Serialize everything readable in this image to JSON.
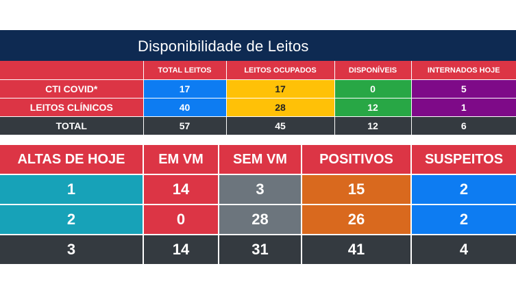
{
  "header": {
    "title": "Disponibilidade de Leitos"
  },
  "beds_table": {
    "columns": [
      "",
      "TOTAL LEITOS",
      "LEITOS OCUPADOS",
      "DISPONÍVEIS",
      "INTERNADOS HOJE"
    ],
    "rows": [
      {
        "label": "CTI COVID*",
        "values": [
          "17",
          "17",
          "0",
          "5"
        ]
      },
      {
        "label": "LEITOS CLÍNICOS",
        "values": [
          "40",
          "28",
          "12",
          "1"
        ]
      },
      {
        "label": "TOTAL",
        "values": [
          "57",
          "45",
          "12",
          "6"
        ]
      }
    ]
  },
  "status_table": {
    "columns": [
      "ALTAS DE HOJE",
      "EM VM",
      "SEM VM",
      "POSITIVOS",
      "SUSPEITOS"
    ],
    "rows": [
      [
        "1",
        "14",
        "3",
        "15",
        "2"
      ],
      [
        "2",
        "0",
        "28",
        "26",
        "2"
      ],
      [
        "3",
        "14",
        "31",
        "41",
        "4"
      ]
    ]
  },
  "colors": {
    "navy": "#0e2a52",
    "red": "#dc3545",
    "blue": "#0d7cf2",
    "yellow": "#ffc107",
    "green": "#28a745",
    "purple": "#7e0a88",
    "teal": "#17a2b8",
    "gray": "#6c757d",
    "orange": "#d9691e",
    "dark": "#343a40"
  }
}
